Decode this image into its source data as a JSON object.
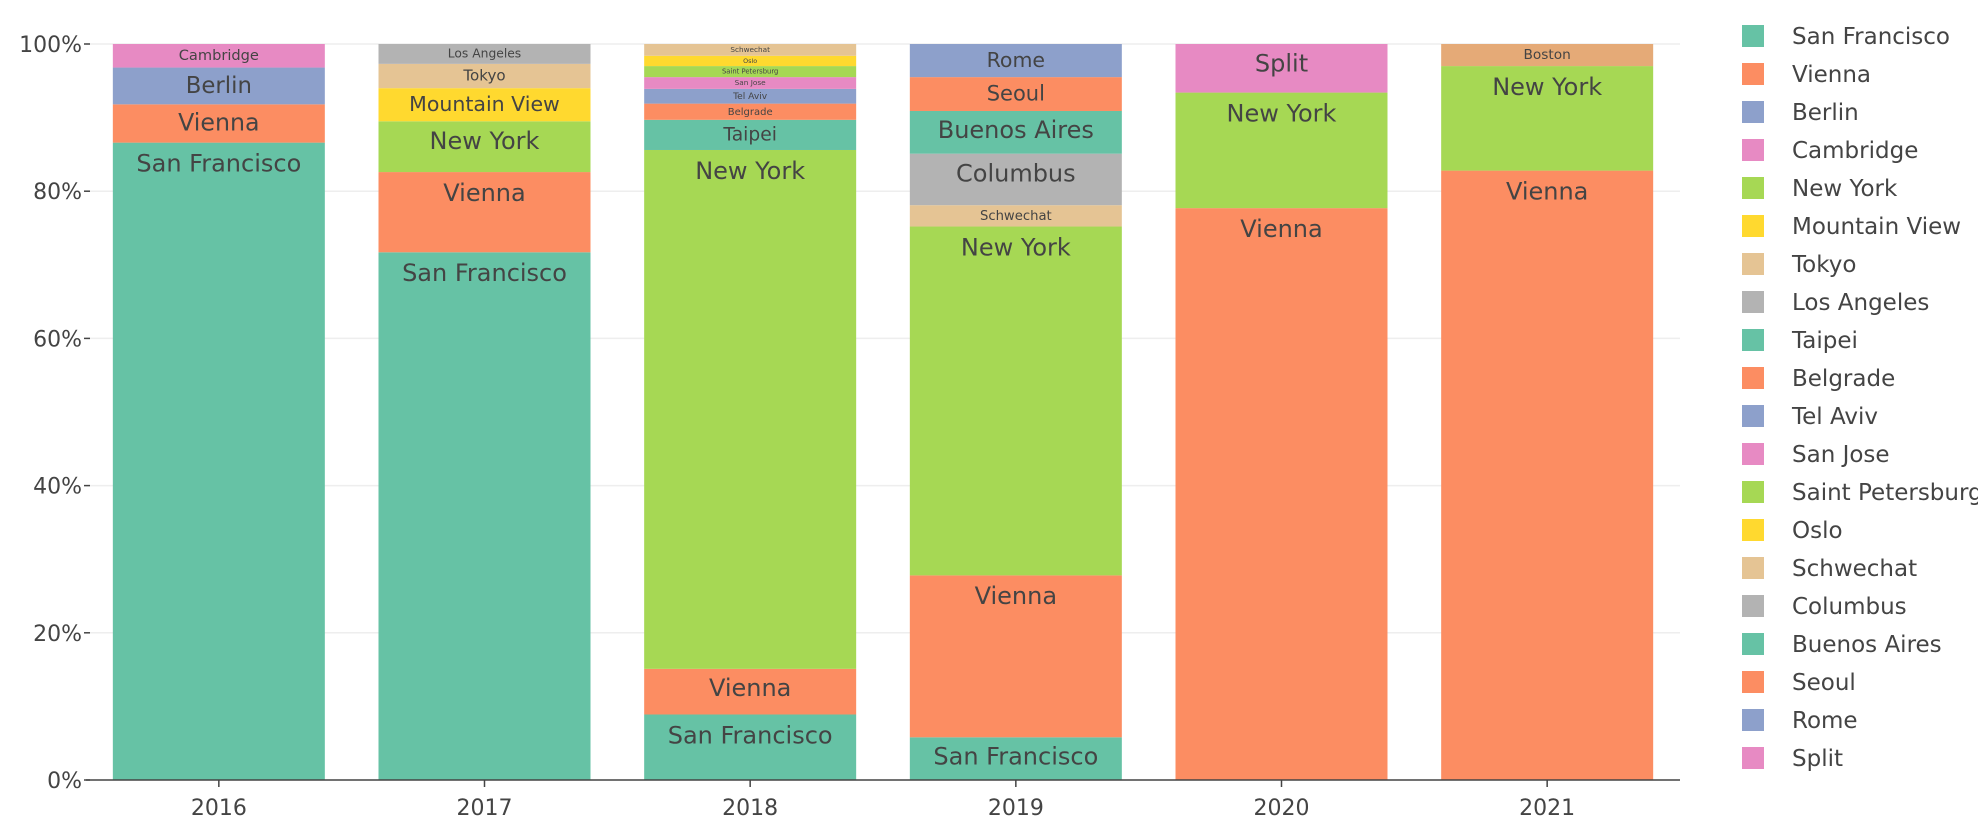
{
  "chart_data": {
    "type": "bar",
    "stacked": true,
    "normalized": true,
    "categories": [
      "2016",
      "2017",
      "2018",
      "2019",
      "2020",
      "2021"
    ],
    "ylim": [
      0,
      100
    ],
    "yticks": [
      0,
      20,
      40,
      60,
      80,
      100
    ],
    "ytick_labels": [
      "0%",
      "20%",
      "40%",
      "60%",
      "80%",
      "100%"
    ],
    "grid": true,
    "legend_position": "right",
    "series": [
      {
        "name": "San Francisco",
        "color": "#66c2a5",
        "values": [
          86.6,
          71.7,
          8.9,
          5.8,
          0,
          0
        ]
      },
      {
        "name": "Vienna",
        "color": "#fc8d62",
        "values": [
          5.2,
          10.9,
          6.2,
          22.0,
          77.7,
          82.8
        ]
      },
      {
        "name": "Berlin",
        "color": "#8da0cb",
        "values": [
          5.0,
          0,
          0,
          0,
          0,
          0
        ]
      },
      {
        "name": "Cambridge",
        "color": "#e78ac3",
        "values": [
          3.2,
          0,
          0,
          0,
          0,
          0
        ]
      },
      {
        "name": "New York",
        "color": "#a6d854",
        "values": [
          0,
          6.9,
          70.5,
          47.4,
          15.7,
          14.2
        ]
      },
      {
        "name": "Mountain View",
        "color": "#ffd92f",
        "values": [
          0,
          4.5,
          0,
          0,
          0,
          0
        ]
      },
      {
        "name": "Tokyo",
        "color": "#e5c494",
        "values": [
          0,
          3.3,
          0,
          0,
          0,
          0
        ]
      },
      {
        "name": "Los Angeles",
        "color": "#b3b3b3",
        "values": [
          0,
          2.7,
          0,
          0,
          0,
          0
        ]
      },
      {
        "name": "Taipei",
        "color": "#66c2a5",
        "values": [
          0,
          0,
          4.1,
          0,
          0,
          0
        ]
      },
      {
        "name": "Belgrade",
        "color": "#fc8d62",
        "values": [
          0,
          0,
          2.2,
          0,
          0,
          0
        ]
      },
      {
        "name": "Tel Aviv",
        "color": "#8da0cb",
        "values": [
          0,
          0,
          2.0,
          0,
          0,
          0
        ]
      },
      {
        "name": "San Jose",
        "color": "#e78ac3",
        "values": [
          0,
          0,
          1.6,
          0,
          0,
          0
        ]
      },
      {
        "name": "Saint Petersburg",
        "color": "#a6d854",
        "values": [
          0,
          0,
          1.5,
          0,
          0,
          0
        ]
      },
      {
        "name": "Oslo",
        "color": "#ffd92f",
        "values": [
          0,
          0,
          1.4,
          0,
          0,
          0
        ]
      },
      {
        "name": "Schwechat",
        "color": "#e5c494",
        "values": [
          0,
          0,
          1.6,
          2.9,
          0,
          0
        ]
      },
      {
        "name": "Columbus",
        "color": "#b3b3b3",
        "values": [
          0,
          0,
          0,
          7.0,
          0,
          0
        ]
      },
      {
        "name": "Buenos Aires",
        "color": "#66c2a5",
        "values": [
          0,
          0,
          0,
          5.8,
          0,
          0
        ]
      },
      {
        "name": "Seoul",
        "color": "#fc8d62",
        "values": [
          0,
          0,
          0,
          4.6,
          0,
          0
        ]
      },
      {
        "name": "Rome",
        "color": "#8da0cb",
        "values": [
          0,
          0,
          0,
          4.5,
          0,
          0
        ]
      },
      {
        "name": "Split",
        "color": "#e78ac3",
        "values": [
          0,
          0,
          0,
          0,
          6.6,
          0
        ]
      },
      {
        "name": "Boston",
        "color": "#e5aa77",
        "values": [
          0,
          0,
          0,
          0,
          0,
          3.0
        ]
      }
    ]
  }
}
